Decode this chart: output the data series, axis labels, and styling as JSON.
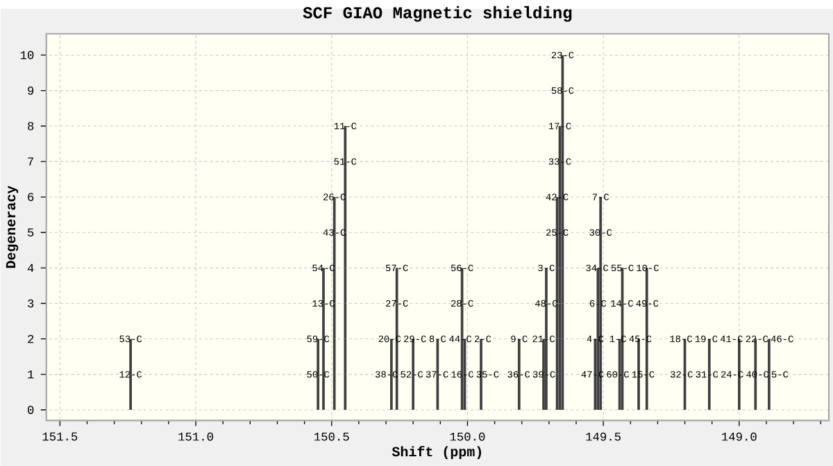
{
  "chart_data": {
    "type": "bar",
    "title": "SCF GIAO Magnetic shielding",
    "xlabel": "Shift (ppm)",
    "ylabel": "Degeneracy",
    "x": [
      151.24,
      150.55,
      150.53,
      150.49,
      150.45,
      150.28,
      150.26,
      150.2,
      150.11,
      150.02,
      150.01,
      149.95,
      149.81,
      149.72,
      149.71,
      149.67,
      149.66,
      149.65,
      149.53,
      149.52,
      149.51,
      149.44,
      149.43,
      149.37,
      149.34,
      149.2,
      149.11,
      149.0,
      148.94,
      148.89
    ],
    "stacked": true,
    "series": [
      {
        "color": "#404040",
        "values": [
          1,
          1,
          1,
          1,
          1,
          1,
          1,
          1,
          1,
          1,
          1,
          1,
          1,
          1,
          1,
          1,
          1,
          1,
          1,
          1,
          1,
          1,
          1,
          1,
          1,
          1,
          1,
          1,
          1,
          1
        ]
      },
      {
        "color": "#404040",
        "values": [
          1,
          1,
          1,
          1,
          1,
          1,
          1,
          1,
          1,
          1,
          1,
          1,
          1,
          1,
          1,
          1,
          1,
          1,
          1,
          1,
          1,
          1,
          1,
          1,
          1,
          1,
          1,
          1,
          1,
          1
        ]
      },
      {
        "color": "#404040",
        "values": [
          null,
          null,
          1,
          1,
          1,
          null,
          1,
          null,
          null,
          1,
          null,
          null,
          null,
          null,
          1,
          1,
          1,
          1,
          null,
          1,
          1,
          null,
          1,
          null,
          1,
          null,
          null,
          null,
          null,
          null
        ]
      },
      {
        "color": "#404040",
        "values": [
          null,
          null,
          1,
          1,
          1,
          null,
          1,
          null,
          null,
          1,
          null,
          null,
          null,
          null,
          1,
          1,
          1,
          1,
          null,
          1,
          1,
          null,
          1,
          null,
          1,
          null,
          null,
          null,
          null,
          null
        ]
      },
      {
        "color": "#404040",
        "values": [
          null,
          null,
          null,
          1,
          1,
          null,
          null,
          null,
          null,
          null,
          null,
          null,
          null,
          null,
          null,
          1,
          1,
          1,
          null,
          null,
          1,
          null,
          null,
          null,
          null,
          null,
          null,
          null,
          null,
          null
        ]
      },
      {
        "color": "#404040",
        "values": [
          null,
          null,
          null,
          1,
          1,
          null,
          null,
          null,
          null,
          null,
          null,
          null,
          null,
          null,
          null,
          1,
          1,
          1,
          null,
          null,
          1,
          null,
          null,
          null,
          null,
          null,
          null,
          null,
          null,
          null
        ]
      },
      {
        "color": "#404040",
        "values": [
          null,
          null,
          null,
          null,
          1,
          null,
          null,
          null,
          null,
          null,
          null,
          null,
          null,
          null,
          null,
          null,
          1,
          1,
          null,
          null,
          null,
          null,
          null,
          null,
          null,
          null,
          null,
          null,
          null,
          null
        ]
      },
      {
        "color": "#404040",
        "values": [
          null,
          null,
          null,
          null,
          1,
          null,
          null,
          null,
          null,
          null,
          null,
          null,
          null,
          null,
          null,
          null,
          1,
          1,
          null,
          null,
          null,
          null,
          null,
          null,
          null,
          null,
          null,
          null,
          null,
          null
        ]
      },
      {
        "color": "#404040",
        "values": [
          null,
          null,
          null,
          null,
          null,
          null,
          null,
          null,
          null,
          null,
          null,
          null,
          null,
          null,
          null,
          null,
          null,
          1,
          null,
          null,
          null,
          null,
          null,
          null,
          null,
          null,
          null,
          null,
          null,
          null
        ]
      },
      {
        "color": "#404040",
        "values": [
          null,
          null,
          null,
          null,
          null,
          null,
          null,
          null,
          null,
          null,
          null,
          null,
          null,
          null,
          null,
          null,
          null,
          1,
          null,
          null,
          null,
          null,
          null,
          null,
          null,
          null,
          null,
          null,
          null,
          null
        ]
      }
    ],
    "xlim": [
      151.55,
      148.67
    ],
    "ylim": [
      -0.3,
      10.6
    ],
    "xticks": [
      151.5,
      {
        "value": 151.4,
        "label": null
      },
      {
        "value": 151.3,
        "label": null
      },
      {
        "value": 151.2,
        "label": null
      },
      {
        "value": 151.1,
        "label": null
      },
      {
        "value": 151.0,
        "label": "151.0"
      },
      {
        "value": 150.9,
        "label": null
      },
      {
        "value": 150.8,
        "label": null
      },
      {
        "value": 150.7,
        "label": null
      },
      {
        "value": 150.6,
        "label": null
      },
      150.5,
      {
        "value": 150.4,
        "label": null
      },
      {
        "value": 150.3,
        "label": null
      },
      {
        "value": 150.2,
        "label": null
      },
      {
        "value": 150.1,
        "label": null
      },
      {
        "value": 150.0,
        "label": "150.0"
      },
      {
        "value": 149.9,
        "label": null
      },
      {
        "value": 149.8,
        "label": null
      },
      {
        "value": 149.7,
        "label": null
      },
      {
        "value": 149.6,
        "label": null
      },
      149.5,
      {
        "value": 149.4,
        "label": null
      },
      {
        "value": 149.3,
        "label": null
      },
      {
        "value": 149.2,
        "label": null
      },
      {
        "value": 149.1,
        "label": null
      },
      {
        "value": 149.0,
        "label": "149.0"
      },
      {
        "value": 148.9,
        "label": null
      },
      {
        "value": 148.8,
        "label": null
      },
      {
        "value": 148.7,
        "label": null
      }
    ],
    "yticks": [
      0,
      1,
      2,
      3,
      4,
      5,
      6,
      7,
      8,
      9,
      10
    ],
    "grid": true,
    "annotations": [
      {
        "text": "12-C",
        "x": 151.24,
        "y": 1
      },
      {
        "text": "53-C",
        "x": 151.24,
        "y": 2
      },
      {
        "text": "50-C",
        "x": 150.55,
        "y": 1
      },
      {
        "text": "59-C",
        "x": 150.55,
        "y": 2
      },
      {
        "text": "13-C",
        "x": 150.53,
        "y": 3
      },
      {
        "text": "54-C",
        "x": 150.53,
        "y": 4
      },
      {
        "text": "43-C",
        "x": 150.49,
        "y": 5
      },
      {
        "text": "26-C",
        "x": 150.49,
        "y": 6
      },
      {
        "text": "51-C",
        "x": 150.45,
        "y": 7
      },
      {
        "text": "11-C",
        "x": 150.45,
        "y": 8
      },
      {
        "text": "38-C",
        "x": 150.28,
        "y": 1
      },
      {
        "text": "20-C",
        "x": 150.28,
        "y": 2
      },
      {
        "text": "27-C",
        "x": 150.26,
        "y": 3
      },
      {
        "text": "57-C",
        "x": 150.26,
        "y": 4
      },
      {
        "text": "52-C",
        "x": 150.2,
        "y": 1
      },
      {
        "text": "29-C",
        "x": 150.2,
        "y": 2
      },
      {
        "text": "37-C",
        "x": 150.11,
        "y": 1
      },
      {
        "text": "8-C",
        "x": 150.11,
        "y": 2
      },
      {
        "text": "16-C",
        "x": 150.02,
        "y": 1
      },
      {
        "text": "44-C",
        "x": 150.02,
        "y": 2
      },
      {
        "text": "28-C",
        "x": 150.02,
        "y": 3
      },
      {
        "text": "56-C",
        "x": 150.02,
        "y": 4
      },
      {
        "text": "35-C",
        "x": 149.95,
        "y": 1
      },
      {
        "text": "2-C",
        "x": 149.95,
        "y": 2
      },
      {
        "text": "36-C",
        "x": 149.81,
        "y": 1
      },
      {
        "text": "9-C",
        "x": 149.81,
        "y": 2
      },
      {
        "text": "39-C",
        "x": 149.72,
        "y": 1
      },
      {
        "text": "21-C",
        "x": 149.72,
        "y": 2
      },
      {
        "text": "48-C",
        "x": 149.71,
        "y": 3
      },
      {
        "text": "3-C",
        "x": 149.71,
        "y": 4
      },
      {
        "text": "25-C",
        "x": 149.67,
        "y": 5
      },
      {
        "text": "42-C",
        "x": 149.67,
        "y": 6
      },
      {
        "text": "33-C",
        "x": 149.66,
        "y": 7
      },
      {
        "text": "17-C",
        "x": 149.66,
        "y": 8
      },
      {
        "text": "58-C",
        "x": 149.65,
        "y": 9
      },
      {
        "text": "23-C",
        "x": 149.65,
        "y": 10
      },
      {
        "text": "47-C",
        "x": 149.53,
        "y": 1
      },
      {
        "text": "4-C",
        "x": 149.53,
        "y": 2
      },
      {
        "text": "6-C",
        "x": 149.52,
        "y": 3
      },
      {
        "text": "34-C",
        "x": 149.52,
        "y": 4
      },
      {
        "text": "30-C",
        "x": 149.51,
        "y": 5
      },
      {
        "text": "7-C",
        "x": 149.51,
        "y": 6
      },
      {
        "text": "60-C",
        "x": 149.44,
        "y": 1
      },
      {
        "text": "1-C",
        "x": 149.44,
        "y": 2
      },
      {
        "text": "14-C",
        "x": 149.43,
        "y": 3
      },
      {
        "text": "55-C",
        "x": 149.43,
        "y": 4
      },
      {
        "text": "15-C",
        "x": 149.37,
        "y": 1
      },
      {
        "text": "45-C",
        "x": 149.37,
        "y": 2
      },
      {
        "text": "49-C",
        "x": 149.34,
        "y": 3
      },
      {
        "text": "10-C",
        "x": 149.34,
        "y": 4
      },
      {
        "text": "32-C",
        "x": 149.2,
        "y": 1
      },
      {
        "text": "18-C",
        "x": 149.2,
        "y": 2
      },
      {
        "text": "31-C",
        "x": 149.11,
        "y": 1
      },
      {
        "text": "19-C",
        "x": 149.11,
        "y": 2
      },
      {
        "text": "24-C",
        "x": 149.0,
        "y": 1
      },
      {
        "text": "41-C",
        "x": 149.0,
        "y": 2
      },
      {
        "text": "40-C",
        "x": 148.94,
        "y": 1
      },
      {
        "text": "22-C",
        "x": 148.94,
        "y": 2
      },
      {
        "text": "5-C",
        "x": 148.89,
        "y": 1
      },
      {
        "text": "46-C",
        "x": 148.89,
        "y": 2
      }
    ]
  }
}
